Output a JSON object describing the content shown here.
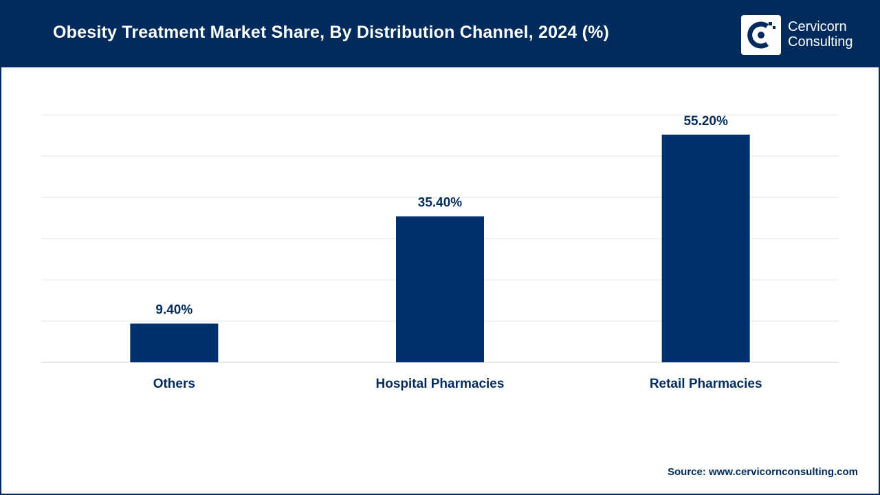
{
  "header": {
    "title": "Obesity Treatment Market Share, By Distribution Channel, 2024 (%)"
  },
  "logo": {
    "line1": "Cervicorn",
    "line2": "Consulting",
    "icon": "cervicorn-logo-icon"
  },
  "colors": {
    "brand": "#002b5c",
    "bar": "#00306b",
    "grid": "#e6e6e6",
    "axis": "#d0d0d0"
  },
  "chart_data": {
    "type": "bar",
    "title": "Obesity Treatment Market Share, By Distribution Channel, 2024 (%)",
    "categories": [
      "Others",
      "Hospital Pharmacies",
      "Retail Pharmacies"
    ],
    "values": [
      9.4,
      35.4,
      55.2
    ],
    "value_labels": [
      "9.40%",
      "35.40%",
      "55.20%"
    ],
    "xlabel": "",
    "ylabel": "",
    "ylim": [
      0,
      60
    ],
    "grid": true,
    "legend": "none"
  },
  "footer": {
    "source": "Source: www.cervicornconsulting.com"
  }
}
